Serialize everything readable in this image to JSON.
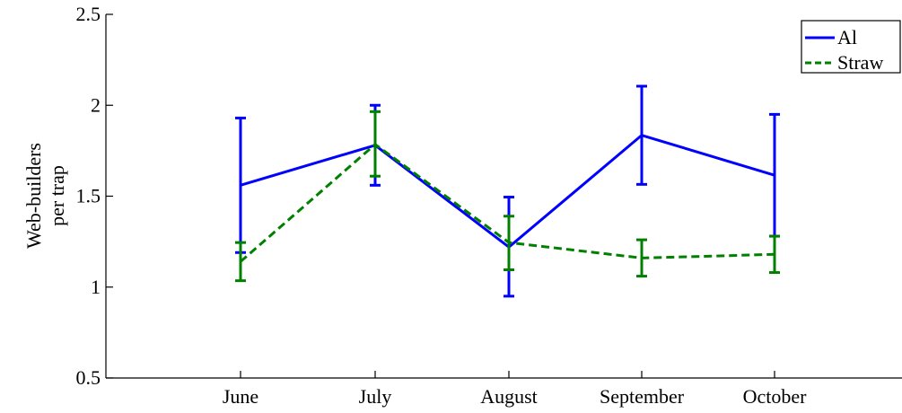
{
  "chart_data": {
    "type": "line",
    "title": "",
    "xlabel": "",
    "ylabel_lines": [
      "Web-builders",
      "per trap"
    ],
    "categories": [
      "June",
      "July",
      "August",
      "September",
      "October"
    ],
    "ylim": [
      0.5,
      2.5
    ],
    "yticks": [
      0.5,
      1,
      1.5,
      2,
      2.5
    ],
    "ytick_labels": [
      "0.5",
      "1",
      "1.5",
      "2",
      "2.5"
    ],
    "grid": false,
    "legend_position": "top-right",
    "series": [
      {
        "name": "Al",
        "color": "#0000ff",
        "line_style": "solid",
        "values": [
          1.56,
          1.78,
          1.22,
          1.835,
          1.615
        ],
        "error_low": [
          1.19,
          1.56,
          0.95,
          1.565,
          1.28
        ],
        "error_high": [
          1.93,
          2.0,
          1.495,
          2.105,
          1.95
        ]
      },
      {
        "name": "Straw",
        "color": "#008000",
        "line_style": "dashed",
        "values": [
          1.14,
          1.785,
          1.245,
          1.16,
          1.18
        ],
        "error_low": [
          1.035,
          1.61,
          1.095,
          1.06,
          1.08
        ],
        "error_high": [
          1.245,
          1.965,
          1.39,
          1.26,
          1.28
        ]
      }
    ]
  }
}
